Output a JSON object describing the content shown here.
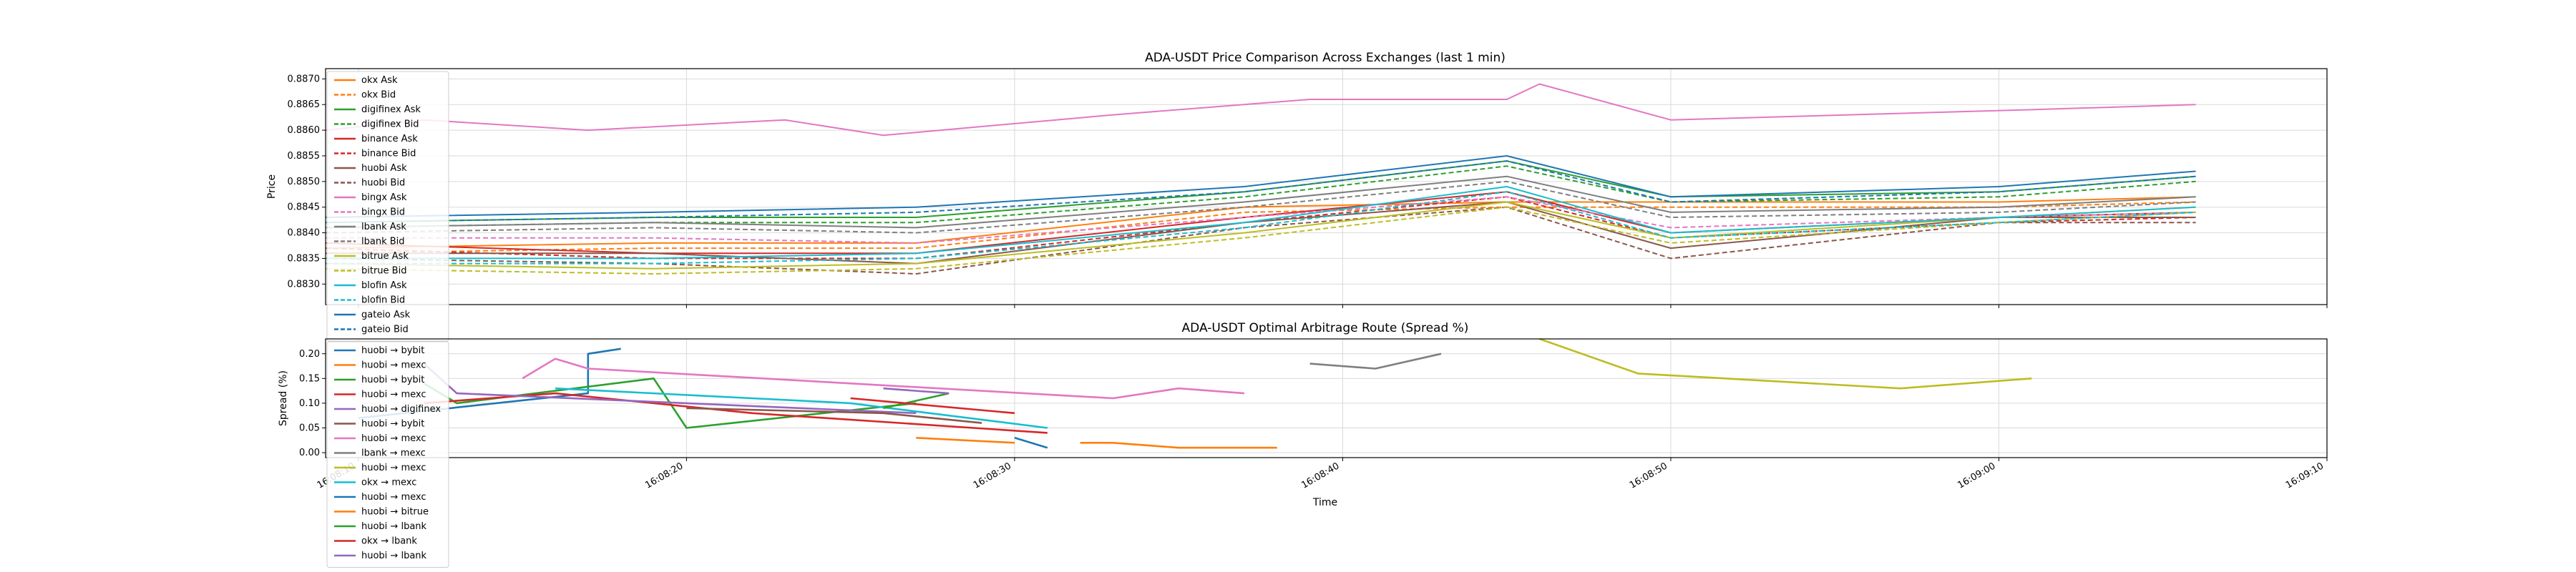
{
  "colors": [
    "#1f77b4",
    "#ff7f0e",
    "#2ca02c",
    "#d62728",
    "#9467bd",
    "#8c564b",
    "#e377c2",
    "#7f7f7f",
    "#bcbd22",
    "#17becf"
  ],
  "chart_data": [
    {
      "type": "line",
      "title": "ADA-USDT Price Comparison Across Exchanges (last 1 min)",
      "xlabel": "",
      "ylabel": "Price",
      "xlim": [
        "16:08:09",
        "16:09:10"
      ],
      "ylim": [
        0.8826,
        0.8872
      ],
      "yticks": [
        "0.8830",
        "0.8835",
        "0.8840",
        "0.8845",
        "0.8850",
        "0.8855",
        "0.8860",
        "0.8865",
        "0.8870"
      ],
      "grid": true,
      "legend_position": "upper-left",
      "series": [
        {
          "name": "okx Ask",
          "color": "#ff7f0e",
          "dash": false,
          "x": [
            "16:08:09",
            "16:08:19",
            "16:08:27",
            "16:08:37",
            "16:08:45",
            "16:08:50",
            "16:09:00",
            "16:09:06"
          ],
          "values": [
            0.8837,
            0.8838,
            0.8838,
            0.8845,
            0.8846,
            0.8846,
            0.8846,
            0.8847
          ]
        },
        {
          "name": "okx Bid",
          "color": "#ff7f0e",
          "dash": true,
          "x": [
            "16:08:09",
            "16:08:19",
            "16:08:27",
            "16:08:37",
            "16:08:45",
            "16:08:50",
            "16:09:00",
            "16:09:06"
          ],
          "values": [
            0.8836,
            0.8837,
            0.8837,
            0.8844,
            0.8845,
            0.8845,
            0.8845,
            0.8846
          ]
        },
        {
          "name": "digifinex Ask",
          "color": "#2ca02c",
          "dash": false,
          "x": [
            "16:08:09",
            "16:08:19",
            "16:08:27",
            "16:08:37",
            "16:08:45",
            "16:08:50",
            "16:09:00",
            "16:09:06"
          ],
          "values": [
            0.8842,
            0.8843,
            0.8843,
            0.8848,
            0.8854,
            0.8847,
            0.8848,
            0.8851
          ]
        },
        {
          "name": "digifinex Bid",
          "color": "#2ca02c",
          "dash": true,
          "x": [
            "16:08:09",
            "16:08:19",
            "16:08:27",
            "16:08:37",
            "16:08:45",
            "16:08:50",
            "16:09:00",
            "16:09:06"
          ],
          "values": [
            0.8841,
            0.8842,
            0.8842,
            0.8847,
            0.8853,
            0.8846,
            0.8847,
            0.885
          ]
        },
        {
          "name": "binance Ask",
          "color": "#d62728",
          "dash": false,
          "x": [
            "16:08:09",
            "16:08:19",
            "16:08:27",
            "16:08:37",
            "16:08:45",
            "16:08:50",
            "16:09:00",
            "16:09:06"
          ],
          "values": [
            0.8838,
            0.8836,
            0.8836,
            0.8843,
            0.8848,
            0.884,
            0.8843,
            0.8844
          ]
        },
        {
          "name": "binance Bid",
          "color": "#d62728",
          "dash": true,
          "x": [
            "16:08:09",
            "16:08:19",
            "16:08:27",
            "16:08:37",
            "16:08:45",
            "16:08:50",
            "16:09:00",
            "16:09:06"
          ],
          "values": [
            0.8837,
            0.8835,
            0.8835,
            0.8842,
            0.8847,
            0.8839,
            0.8842,
            0.8843
          ]
        },
        {
          "name": "huobi Ask",
          "color": "#8c564b",
          "dash": false,
          "x": [
            "16:08:09",
            "16:08:19",
            "16:08:27",
            "16:08:37",
            "16:08:45",
            "16:08:50",
            "16:09:00",
            "16:09:06"
          ],
          "values": [
            0.8836,
            0.8836,
            0.8834,
            0.8842,
            0.8846,
            0.8837,
            0.8843,
            0.8843
          ]
        },
        {
          "name": "huobi Bid",
          "color": "#8c564b",
          "dash": true,
          "x": [
            "16:08:09",
            "16:08:19",
            "16:08:27",
            "16:08:37",
            "16:08:45",
            "16:08:50",
            "16:09:00",
            "16:09:06"
          ],
          "values": [
            0.8835,
            0.8834,
            0.8832,
            0.8841,
            0.8845,
            0.8835,
            0.8842,
            0.8842
          ]
        },
        {
          "name": "bingx Ask",
          "color": "#e377c2",
          "dash": false,
          "x": [
            "16:08:09",
            "16:08:12",
            "16:08:17",
            "16:08:23",
            "16:08:26",
            "16:08:33",
            "16:08:39",
            "16:08:45",
            "16:08:46",
            "16:08:50",
            "16:09:01",
            "16:09:06"
          ],
          "values": [
            0.886,
            0.8862,
            0.886,
            0.8862,
            0.8859,
            0.8863,
            0.8866,
            0.8866,
            0.8869,
            0.8862,
            0.8864,
            0.8865
          ]
        },
        {
          "name": "bingx Bid",
          "color": "#e377c2",
          "dash": true,
          "x": [
            "16:08:09",
            "16:08:19",
            "16:08:27",
            "16:08:37",
            "16:08:45",
            "16:08:50",
            "16:09:00",
            "16:09:06"
          ],
          "values": [
            0.8839,
            0.8839,
            0.8838,
            0.8843,
            0.8847,
            0.8841,
            0.8843,
            0.8844
          ]
        },
        {
          "name": "lbank Ask",
          "color": "#7f7f7f",
          "dash": false,
          "x": [
            "16:08:09",
            "16:08:19",
            "16:08:27",
            "16:08:37",
            "16:08:45",
            "16:08:50",
            "16:09:00",
            "16:09:06"
          ],
          "values": [
            0.8841,
            0.8842,
            0.8841,
            0.8846,
            0.8851,
            0.8844,
            0.8845,
            0.8847
          ]
        },
        {
          "name": "lbank Bid",
          "color": "#7f7f7f",
          "dash": true,
          "x": [
            "16:08:09",
            "16:08:19",
            "16:08:27",
            "16:08:37",
            "16:08:45",
            "16:08:50",
            "16:09:00",
            "16:09:06"
          ],
          "values": [
            0.884,
            0.8841,
            0.884,
            0.8845,
            0.885,
            0.8843,
            0.8844,
            0.8846
          ]
        },
        {
          "name": "bitrue Ask",
          "color": "#bcbd22",
          "dash": false,
          "x": [
            "16:08:09",
            "16:08:19",
            "16:08:27",
            "16:08:37",
            "16:08:45",
            "16:08:50",
            "16:09:00",
            "16:09:06"
          ],
          "values": [
            0.8834,
            0.8833,
            0.8834,
            0.884,
            0.8846,
            0.8839,
            0.8843,
            0.8845
          ]
        },
        {
          "name": "bitrue Bid",
          "color": "#bcbd22",
          "dash": true,
          "x": [
            "16:08:09",
            "16:08:19",
            "16:08:27",
            "16:08:37",
            "16:08:45",
            "16:08:50",
            "16:09:00",
            "16:09:06"
          ],
          "values": [
            0.8833,
            0.8832,
            0.8833,
            0.8839,
            0.8845,
            0.8838,
            0.8842,
            0.8844
          ]
        },
        {
          "name": "blofin Ask",
          "color": "#17becf",
          "dash": false,
          "x": [
            "16:08:09",
            "16:08:19",
            "16:08:27",
            "16:08:37",
            "16:08:45",
            "16:08:50",
            "16:09:00",
            "16:09:06"
          ],
          "values": [
            0.8835,
            0.8835,
            0.8836,
            0.8842,
            0.8849,
            0.884,
            0.8843,
            0.8845
          ]
        },
        {
          "name": "blofin Bid",
          "color": "#17becf",
          "dash": true,
          "x": [
            "16:08:09",
            "16:08:19",
            "16:08:27",
            "16:08:37",
            "16:08:45",
            "16:08:50",
            "16:09:00",
            "16:09:06"
          ],
          "values": [
            0.8834,
            0.8834,
            0.8835,
            0.8841,
            0.8848,
            0.8839,
            0.8842,
            0.8844
          ]
        },
        {
          "name": "gateio Ask",
          "color": "#1f77b4",
          "dash": false,
          "x": [
            "16:08:09",
            "16:08:19",
            "16:08:27",
            "16:08:37",
            "16:08:45",
            "16:08:50",
            "16:09:00",
            "16:09:06"
          ],
          "values": [
            0.8843,
            0.8844,
            0.8845,
            0.8849,
            0.8855,
            0.8847,
            0.8849,
            0.8852
          ]
        },
        {
          "name": "gateio Bid",
          "color": "#1f77b4",
          "dash": true,
          "x": [
            "16:08:09",
            "16:08:19",
            "16:08:27",
            "16:08:37",
            "16:08:45",
            "16:08:50",
            "16:09:00",
            "16:09:06"
          ],
          "values": [
            0.8842,
            0.8843,
            0.8844,
            0.8848,
            0.8854,
            0.8846,
            0.8848,
            0.8851
          ]
        }
      ]
    },
    {
      "type": "line",
      "title": "ADA-USDT Optimal Arbitrage Route (Spread %)",
      "xlabel": "Time",
      "ylabel": "Spread (%)",
      "xlim": [
        "16:08:09",
        "16:09:10"
      ],
      "ylim": [
        -0.01,
        0.23
      ],
      "yticks": [
        "0.00",
        "0.05",
        "0.10",
        "0.15",
        "0.20"
      ],
      "xticks": [
        "16:08:10",
        "16:08:20",
        "16:08:30",
        "16:08:40",
        "16:08:50",
        "16:09:00",
        "16:09:10"
      ],
      "grid": true,
      "legend_position": "upper-left",
      "series": [
        {
          "name": "huobi → bybit",
          "color": "#1f77b4",
          "x": [
            "16:08:10",
            "16:08:17",
            "16:08:17",
            "16:08:18"
          ],
          "values": [
            0.07,
            0.12,
            0.2,
            0.21
          ]
        },
        {
          "name": "huobi → mexc",
          "color": "#ff7f0e",
          "x": [
            "16:08:32",
            "16:08:33",
            "16:08:35",
            "16:08:38"
          ],
          "values": [
            0.02,
            0.02,
            0.01,
            0.01
          ]
        },
        {
          "name": "huobi → bybit",
          "color": "#2ca02c",
          "x": [
            "16:08:12",
            "16:08:13",
            "16:08:19",
            "16:08:20",
            "16:08:27"
          ],
          "values": [
            0.14,
            0.1,
            0.15,
            0.05,
            0.1
          ]
        },
        {
          "name": "huobi → mexc",
          "color": "#d62728",
          "x": [
            "16:08:12",
            "16:08:16",
            "16:08:22",
            "16:08:31"
          ],
          "values": [
            0.1,
            0.12,
            0.08,
            0.04
          ]
        },
        {
          "name": "huobi → digifinex",
          "color": "#9467bd",
          "x": [
            "16:08:12",
            "16:08:13",
            "16:08:27"
          ],
          "values": [
            0.18,
            0.12,
            0.08
          ]
        },
        {
          "name": "huobi → bybit",
          "color": "#8c564b",
          "x": [
            "16:08:20",
            "16:08:26",
            "16:08:29"
          ],
          "values": [
            0.09,
            0.08,
            0.06
          ]
        },
        {
          "name": "huobi → mexc",
          "color": "#e377c2",
          "x": [
            "16:08:15",
            "16:08:16",
            "16:08:17",
            "16:08:33",
            "16:08:35",
            "16:08:37"
          ],
          "values": [
            0.15,
            0.19,
            0.17,
            0.11,
            0.13,
            0.12
          ]
        },
        {
          "name": "lbank → mexc",
          "color": "#7f7f7f",
          "x": [
            "16:08:39",
            "16:08:41",
            "16:08:43"
          ],
          "values": [
            0.18,
            0.17,
            0.2
          ]
        },
        {
          "name": "huobi → mexc",
          "color": "#bcbd22",
          "x": [
            "16:08:46",
            "16:08:49",
            "16:08:57",
            "16:09:01"
          ],
          "values": [
            0.23,
            0.16,
            0.13,
            0.15
          ]
        },
        {
          "name": "okx → mexc",
          "color": "#17becf",
          "x": [
            "16:08:16",
            "16:08:25",
            "16:08:31"
          ],
          "values": [
            0.13,
            0.1,
            0.05
          ]
        },
        {
          "name": "huobi → mexc",
          "color": "#1f77b4",
          "x": [
            "16:08:30",
            "16:08:31"
          ],
          "values": [
            0.03,
            0.01
          ]
        },
        {
          "name": "huobi → bitrue",
          "color": "#ff7f0e",
          "x": [
            "16:08:27",
            "16:08:30"
          ],
          "values": [
            0.03,
            0.02
          ]
        },
        {
          "name": "huobi → lbank",
          "color": "#2ca02c",
          "x": [
            "16:08:26",
            "16:08:28"
          ],
          "values": [
            0.09,
            0.12
          ]
        },
        {
          "name": "okx → lbank",
          "color": "#d62728",
          "x": [
            "16:08:25",
            "16:08:30"
          ],
          "values": [
            0.11,
            0.08
          ]
        },
        {
          "name": "huobi → lbank",
          "color": "#9467bd",
          "x": [
            "16:08:26",
            "16:08:28"
          ],
          "values": [
            0.13,
            0.12
          ]
        }
      ]
    }
  ]
}
